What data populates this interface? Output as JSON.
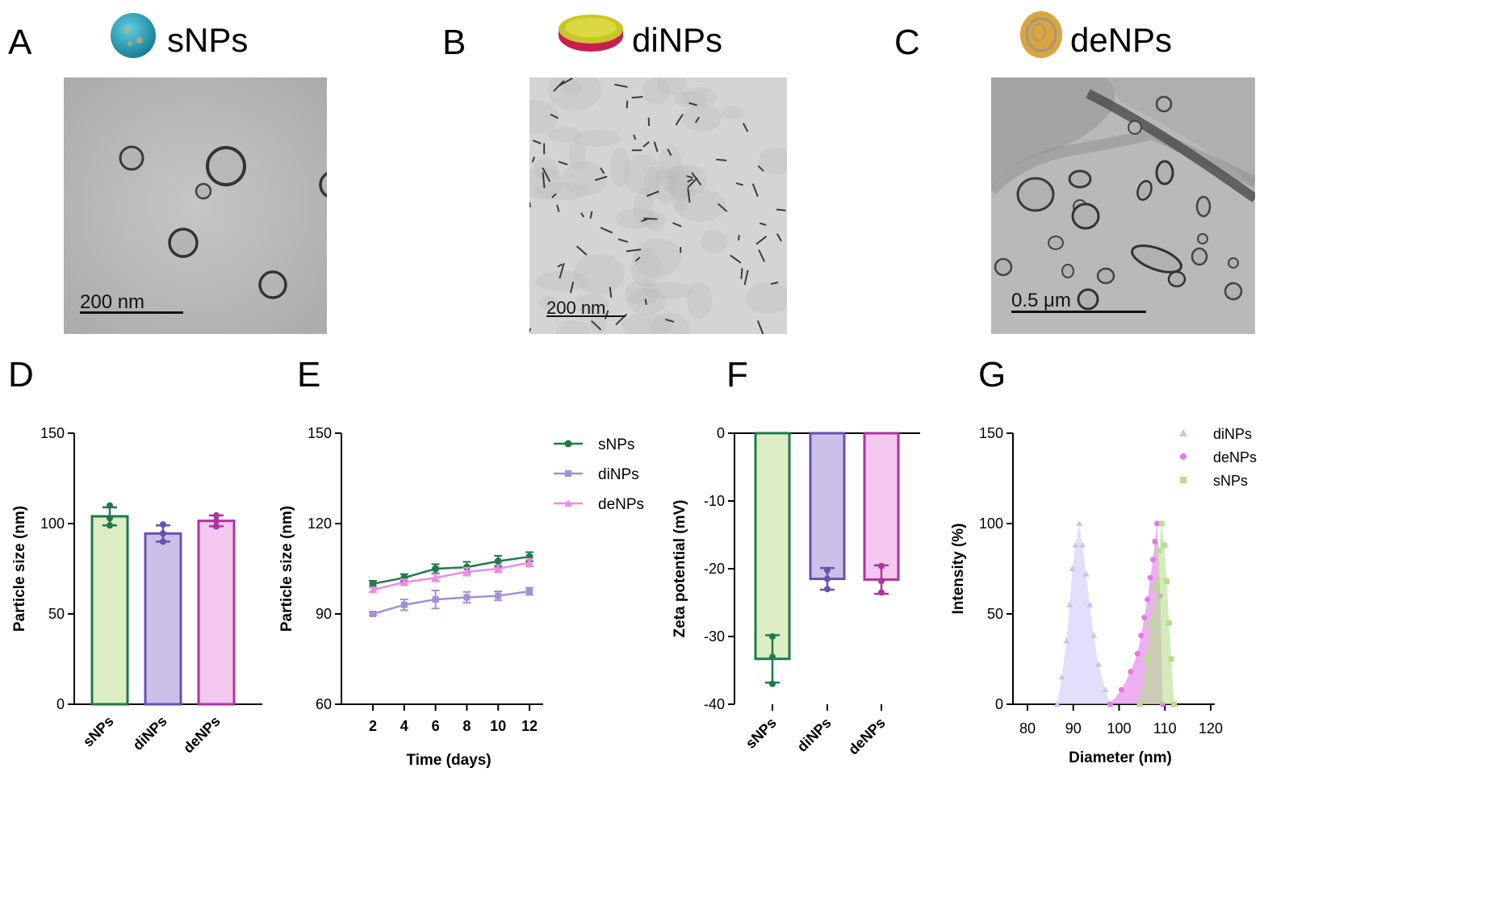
{
  "panels": {
    "a": {
      "letter": "A",
      "title": "sNPs",
      "scalebar": "200 nm"
    },
    "b": {
      "letter": "B",
      "title": "diNPs",
      "scalebar": "200 nm"
    },
    "c": {
      "letter": "C",
      "title": "deNPs",
      "scalebar": "0.5 μm"
    },
    "d": {
      "letter": "D"
    },
    "e": {
      "letter": "E"
    },
    "f": {
      "letter": "F"
    },
    "g": {
      "letter": "G"
    }
  },
  "colors": {
    "sNPs_line": "#1e7a4a",
    "sNPs_fill": "#dcedc3",
    "diNPs_line": "#6a4fae",
    "diNPs_fill": "#cbc0e8",
    "deNPs_line": "#b0329e",
    "deNPs_fill": "#f5c8f0",
    "g_diNPs": "#c8c4f4",
    "g_deNPs": "#e27ae6",
    "g_sNPs": "#b4e08c"
  },
  "chart_data": [
    {
      "panel": "D",
      "type": "bar",
      "ylabel": "Particle size (nm)",
      "ylim": [
        0,
        150
      ],
      "yticks": [
        "0",
        "50",
        "100",
        "150"
      ],
      "categories": [
        "sNPs",
        "diNPs",
        "deNPs"
      ],
      "values": [
        104,
        94.5,
        101.5
      ],
      "errors": [
        5,
        4.5,
        3
      ],
      "points": [
        [
          110,
          99,
          103
        ],
        [
          99.5,
          90,
          94.5
        ],
        [
          104.5,
          98.5,
          101.5
        ]
      ]
    },
    {
      "panel": "E",
      "type": "line",
      "xlabel": "Time (days)",
      "ylabel": "Particle size (nm)",
      "ylim": [
        60,
        150
      ],
      "yticks": [
        "60",
        "90",
        "120",
        "150"
      ],
      "x": [
        2,
        4,
        6,
        8,
        10,
        12
      ],
      "xticks": [
        "2",
        "4",
        "6",
        "8",
        "10",
        "12"
      ],
      "series": [
        {
          "name": "sNPs",
          "values": [
            100,
            102,
            105,
            105.5,
            107.5,
            109
          ],
          "errors": [
            1,
            1.2,
            1.5,
            1.8,
            1.8,
            1.5
          ]
        },
        {
          "name": "diNPs",
          "values": [
            90,
            93,
            94.8,
            95.5,
            96,
            97.5
          ],
          "errors": [
            0.5,
            1.8,
            3,
            1.8,
            1.5,
            1.2
          ]
        },
        {
          "name": "deNPs",
          "values": [
            98,
            100.5,
            102,
            104,
            105,
            107
          ],
          "errors": [
            0.8,
            1,
            1.2,
            1.3,
            1.2,
            1.3
          ]
        }
      ],
      "legend": "top-right"
    },
    {
      "panel": "F",
      "type": "bar",
      "ylabel": "Zeta potential (mV)",
      "ylim": [
        -40,
        0
      ],
      "yticks": [
        "0",
        "-10",
        "-20",
        "-30",
        "-40"
      ],
      "categories": [
        "sNPs",
        "diNPs",
        "deNPs"
      ],
      "values": [
        -33.3,
        -21.5,
        -21.6
      ],
      "errors": [
        3.5,
        1.6,
        2.1
      ],
      "points": [
        [
          -30,
          -33,
          -37
        ],
        [
          -20.2,
          -21.5,
          -23
        ],
        [
          -19.6,
          -21.8,
          -23.5
        ]
      ]
    },
    {
      "panel": "G",
      "type": "area",
      "xlabel": "Diameter (nm)",
      "ylabel": "Intensity (%)",
      "xlim": [
        80,
        120
      ],
      "ylim": [
        0,
        150
      ],
      "xticks": [
        "80",
        "90",
        "100",
        "110",
        "120"
      ],
      "yticks": [
        "0",
        "50",
        "100",
        "150"
      ],
      "legend": "top-right",
      "series": [
        {
          "name": "diNPs",
          "x": [
            86.5,
            87.5,
            88.5,
            89.2,
            89.8,
            90.5,
            91.3,
            92,
            92.8,
            93.6,
            94.5,
            95.5,
            97,
            98.2
          ],
          "values": [
            0,
            15,
            35,
            55,
            75,
            88,
            100,
            88,
            72,
            55,
            38,
            22,
            8,
            0
          ]
        },
        {
          "name": "deNPs",
          "x": [
            98,
            100.5,
            102.5,
            104,
            104.8,
            105.5,
            106.2,
            106.8,
            107.4,
            107.8,
            108.3,
            109,
            109.5
          ],
          "values": [
            0,
            8,
            18,
            28,
            38,
            48,
            58,
            70,
            80,
            90,
            100,
            60,
            0
          ]
        },
        {
          "name": "sNPs",
          "x": [
            104.5,
            106,
            107,
            108,
            108.7,
            109.3,
            109.9,
            110.4,
            110.9,
            111.4,
            112
          ],
          "values": [
            0,
            25,
            45,
            65,
            85,
            100,
            88,
            68,
            45,
            25,
            0
          ]
        }
      ]
    }
  ]
}
